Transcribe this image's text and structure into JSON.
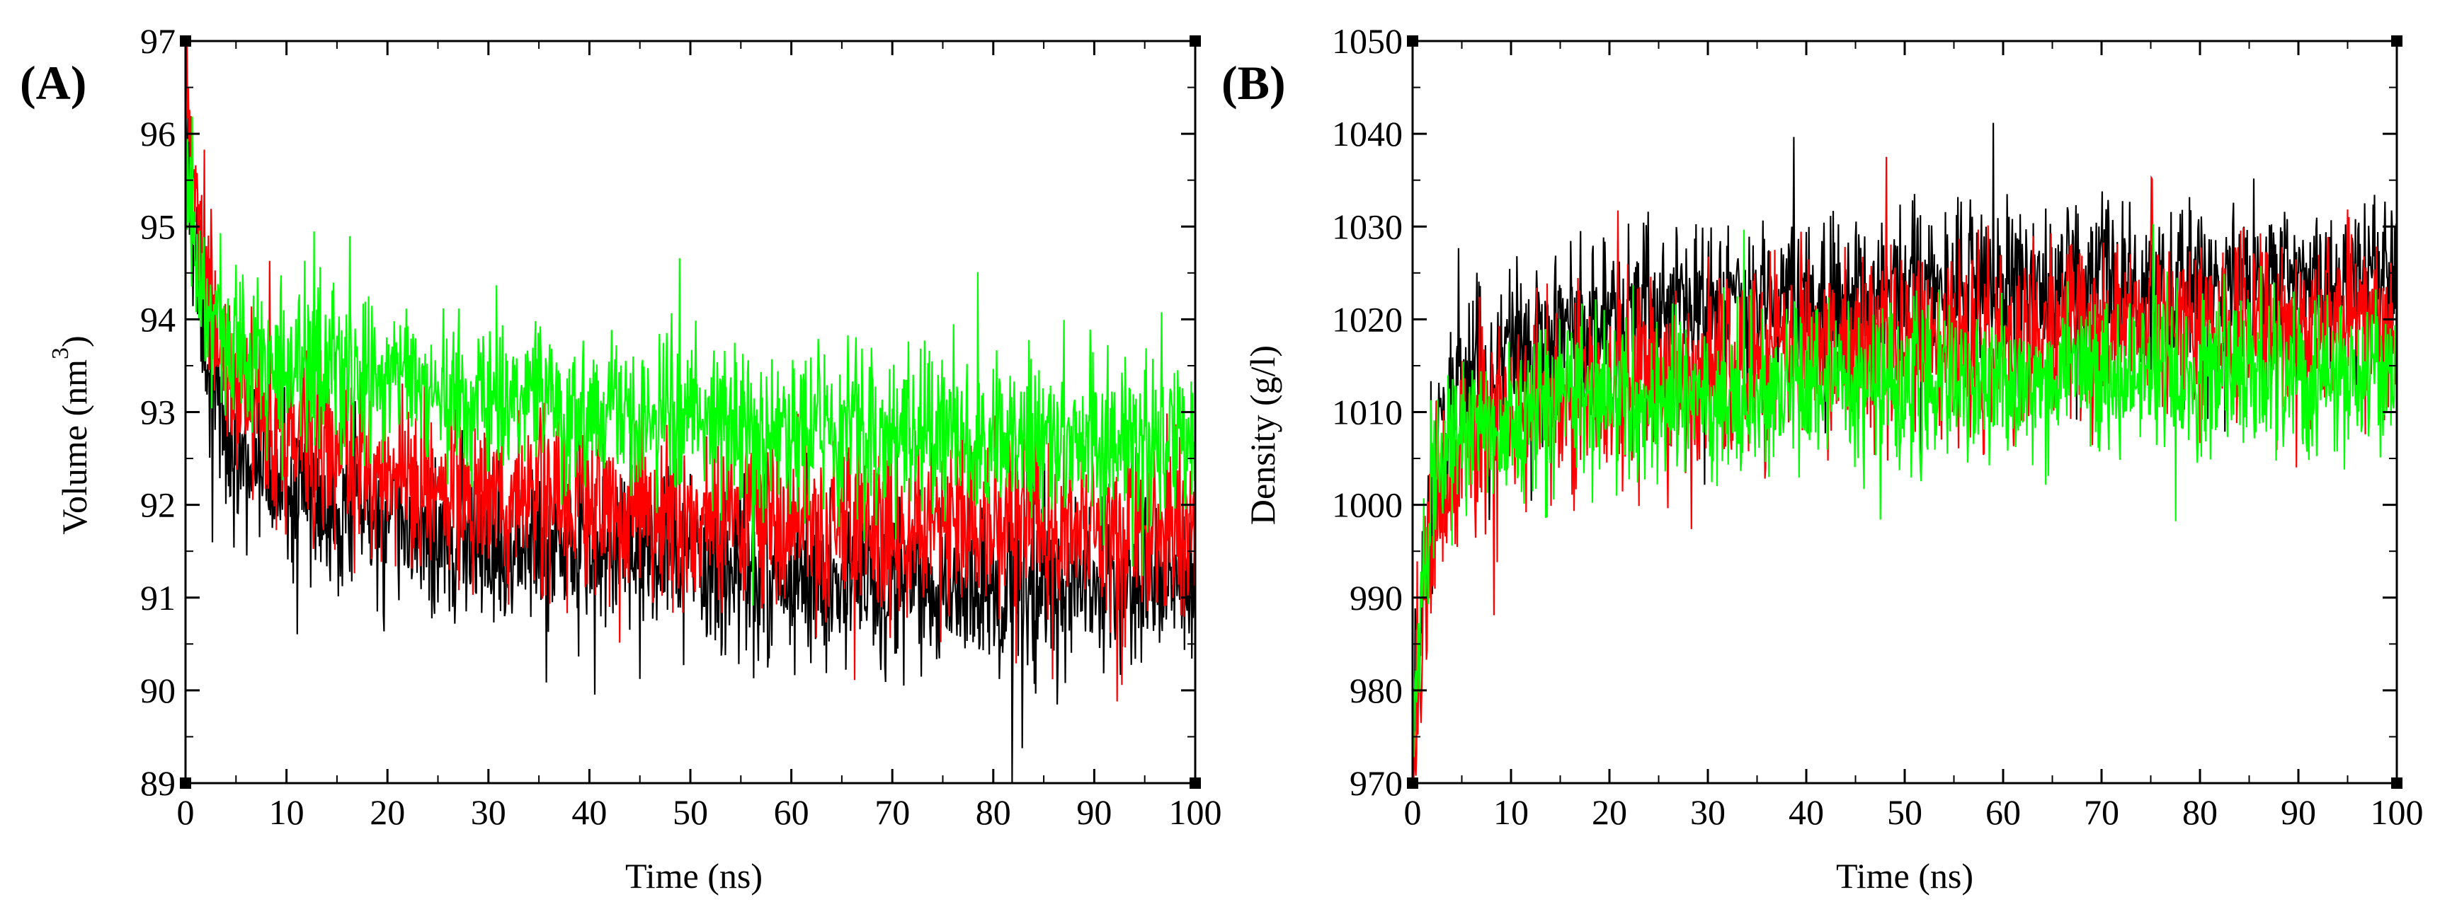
{
  "chart_data": [
    {
      "type": "line",
      "panel_label": "(A)",
      "xlabel": "Time (ns)",
      "ylabel_main": "Volume (nm",
      "ylabel_sup": "3",
      "ylabel_close": ")",
      "xlim": [
        0,
        100
      ],
      "ylim": [
        89,
        97
      ],
      "xticks": [
        0,
        10,
        20,
        30,
        40,
        50,
        60,
        70,
        80,
        90,
        100
      ],
      "yticks": [
        89,
        90,
        91,
        92,
        93,
        94,
        95,
        96,
        97
      ],
      "grid": false,
      "series": [
        {
          "name": "black",
          "color": "#000000",
          "x": [
            0,
            1,
            2,
            3,
            5,
            10,
            15,
            20,
            30,
            40,
            50,
            60,
            70,
            80,
            90,
            100
          ],
          "mean": [
            96.0,
            94.8,
            93.8,
            93.0,
            92.5,
            92.2,
            92.0,
            91.8,
            91.6,
            91.5,
            91.4,
            91.2,
            91.1,
            91.1,
            91.1,
            91.2
          ],
          "spread": 1.3
        },
        {
          "name": "red",
          "color": "#ff0000",
          "x": [
            0,
            1,
            2,
            3,
            5,
            10,
            15,
            20,
            30,
            40,
            50,
            60,
            70,
            80,
            90,
            100
          ],
          "mean": [
            96.5,
            95.4,
            94.5,
            93.8,
            93.2,
            92.8,
            92.5,
            92.3,
            92.1,
            92.0,
            91.9,
            91.8,
            91.8,
            91.8,
            91.8,
            91.8
          ],
          "spread": 1.4
        },
        {
          "name": "green",
          "color": "#00ff00",
          "x": [
            0,
            1,
            2,
            3,
            5,
            10,
            15,
            20,
            30,
            40,
            50,
            60,
            70,
            80,
            90,
            100
          ],
          "mean": [
            96.0,
            94.8,
            94.2,
            93.9,
            93.7,
            93.5,
            93.4,
            93.3,
            93.1,
            93.0,
            92.9,
            92.8,
            92.7,
            92.7,
            92.7,
            92.7
          ],
          "spread": 1.3
        }
      ]
    },
    {
      "type": "line",
      "panel_label": "(B)",
      "xlabel": "Time (ns)",
      "ylabel": "Density (g/l)",
      "xlim": [
        0,
        100
      ],
      "ylim": [
        970,
        1050
      ],
      "xticks": [
        0,
        10,
        20,
        30,
        40,
        50,
        60,
        70,
        80,
        90,
        100
      ],
      "yticks": [
        970,
        980,
        990,
        1000,
        1010,
        1020,
        1030,
        1040,
        1050
      ],
      "grid": false,
      "series": [
        {
          "name": "black",
          "color": "#000000",
          "x": [
            0,
            1,
            2,
            3,
            5,
            10,
            15,
            20,
            30,
            40,
            50,
            60,
            70,
            80,
            90,
            100
          ],
          "mean": [
            975,
            990,
            1002,
            1008,
            1013,
            1017,
            1019,
            1020,
            1021,
            1022,
            1023,
            1023,
            1024,
            1024,
            1024,
            1024
          ],
          "spread": 13
        },
        {
          "name": "red",
          "color": "#ff0000",
          "x": [
            0,
            1,
            2,
            3,
            5,
            10,
            15,
            20,
            30,
            40,
            50,
            60,
            70,
            80,
            90,
            100
          ],
          "mean": [
            972,
            985,
            995,
            1001,
            1006,
            1010,
            1012,
            1013,
            1015,
            1016,
            1017,
            1018,
            1019,
            1019,
            1019,
            1020
          ],
          "spread": 14
        },
        {
          "name": "green",
          "color": "#00ff00",
          "x": [
            0,
            1,
            2,
            3,
            5,
            10,
            15,
            20,
            30,
            40,
            50,
            60,
            70,
            80,
            90,
            100
          ],
          "mean": [
            975,
            995,
            1002,
            1005,
            1007,
            1009,
            1010,
            1011,
            1012,
            1013,
            1013,
            1014,
            1014,
            1014,
            1014,
            1015
          ],
          "spread": 13
        }
      ]
    }
  ]
}
